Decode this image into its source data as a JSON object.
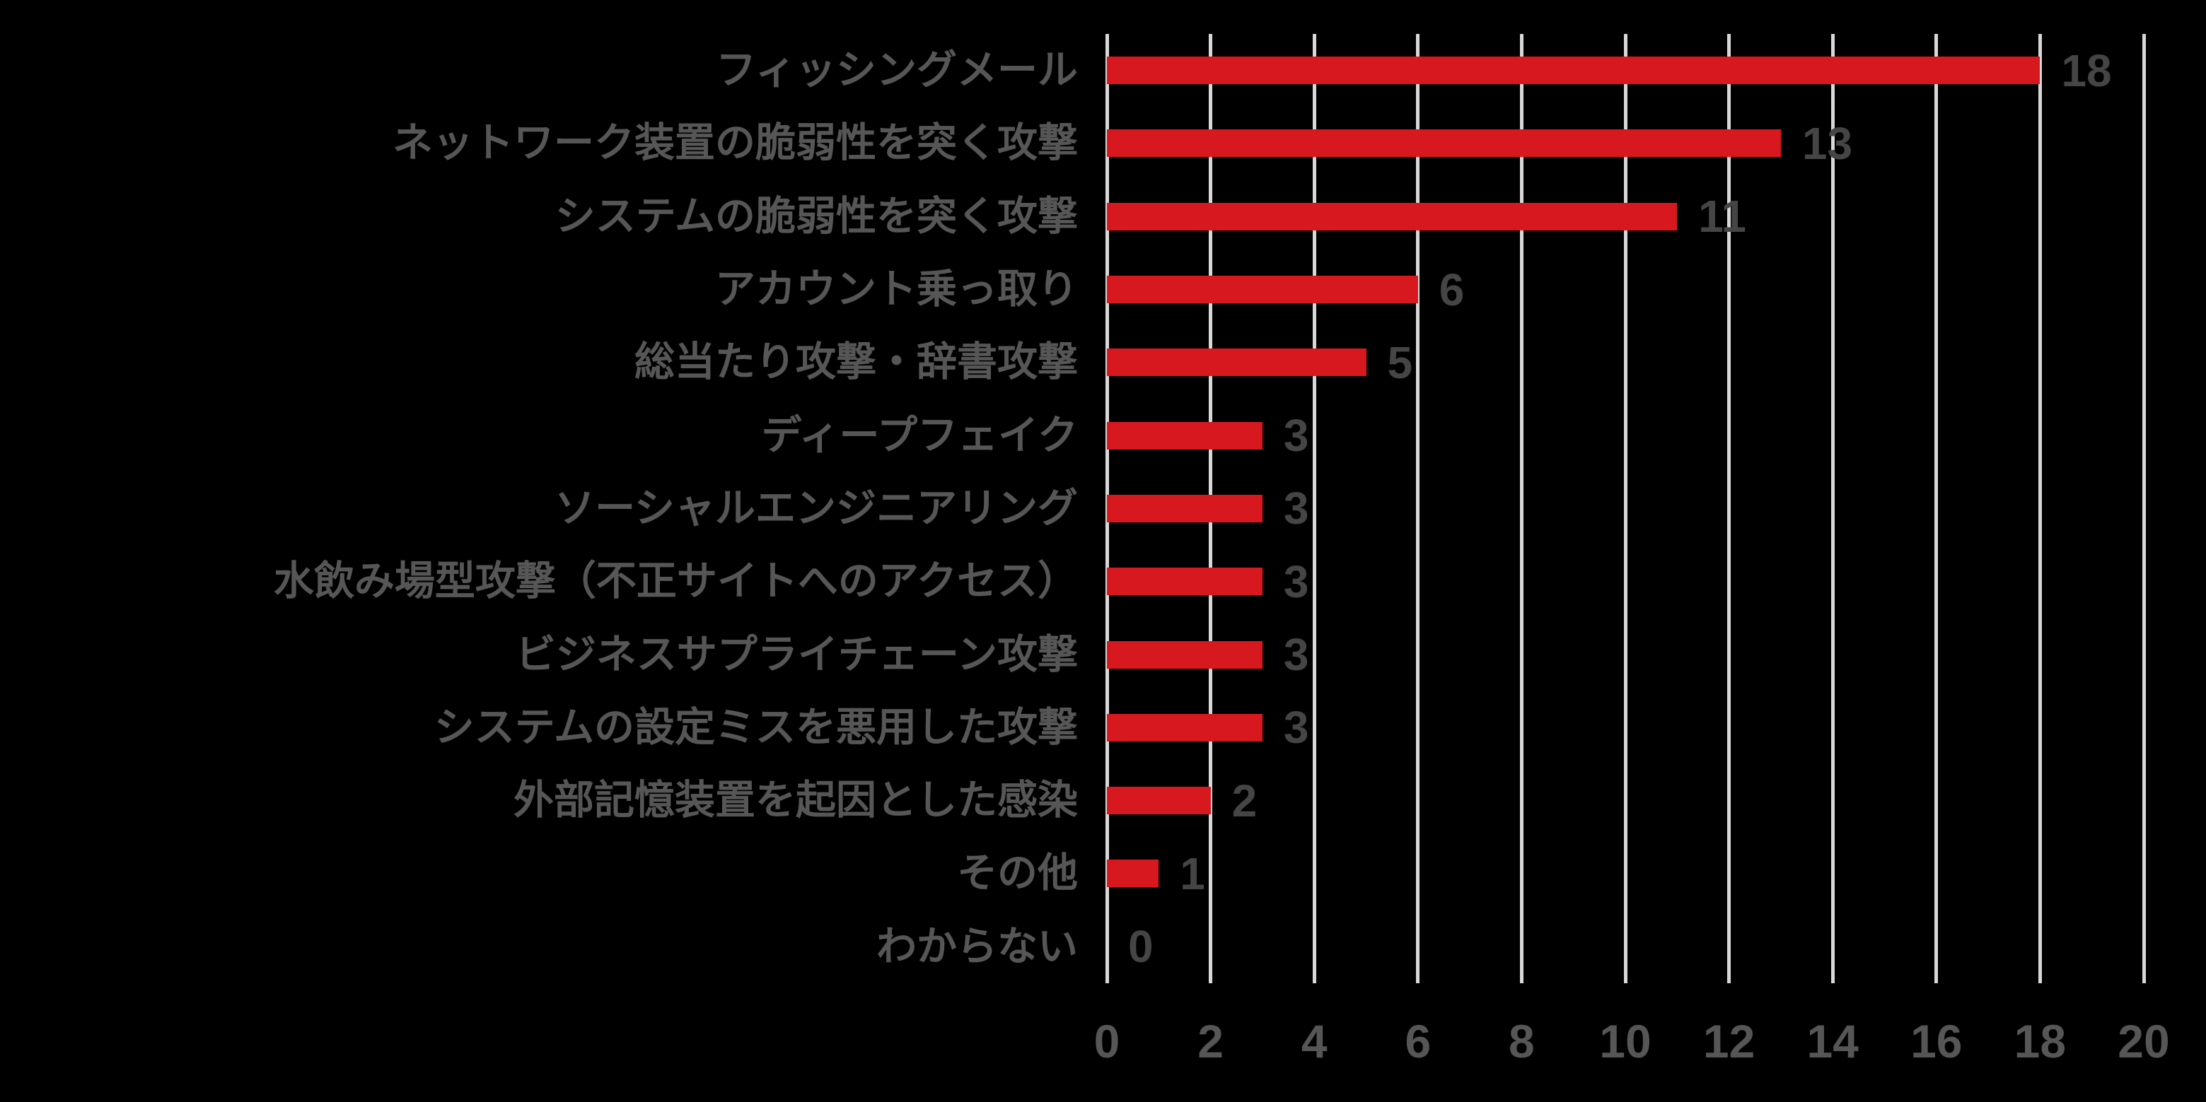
{
  "chart_data": {
    "type": "bar",
    "orientation": "horizontal",
    "title": "",
    "xlabel": "",
    "ylabel": "",
    "categories": [
      "フィッシングメール",
      "ネットワーク装置の脆弱性を突く攻撃",
      "システムの脆弱性を突く攻撃",
      "アカウント乗っ取り",
      "総当たり攻撃・辞書攻撃",
      "ディープフェイク",
      "ソーシャルエンジニアリング",
      "水飲み場型攻撃（不正サイトへのアクセス）",
      "ビジネスサプライチェーン攻撃",
      "システムの設定ミスを悪用した攻撃",
      "外部記憶装置を起因とした感染",
      "その他",
      "わからない"
    ],
    "values": [
      18,
      13,
      11,
      6,
      5,
      3,
      3,
      3,
      3,
      3,
      2,
      1,
      0
    ],
    "data_labels": [
      "18",
      "13",
      "11",
      "6",
      "5",
      "3",
      "3",
      "3",
      "3",
      "3",
      "2",
      "1",
      "0"
    ],
    "xlim": [
      0,
      20
    ],
    "xticks": [
      0,
      2,
      4,
      6,
      8,
      10,
      12,
      14,
      16,
      18,
      20
    ],
    "xtick_labels": [
      "0",
      "2",
      "4",
      "6",
      "8",
      "10",
      "12",
      "14",
      "16",
      "18",
      "20"
    ],
    "grid": "vertical",
    "legend": "none",
    "colors": {
      "bar": "#D7191F",
      "gridline": "#D8D8D8",
      "category_label": "#565656",
      "data_label": "#454545",
      "axis_tick_label": "#565656",
      "background": "#000000"
    }
  }
}
